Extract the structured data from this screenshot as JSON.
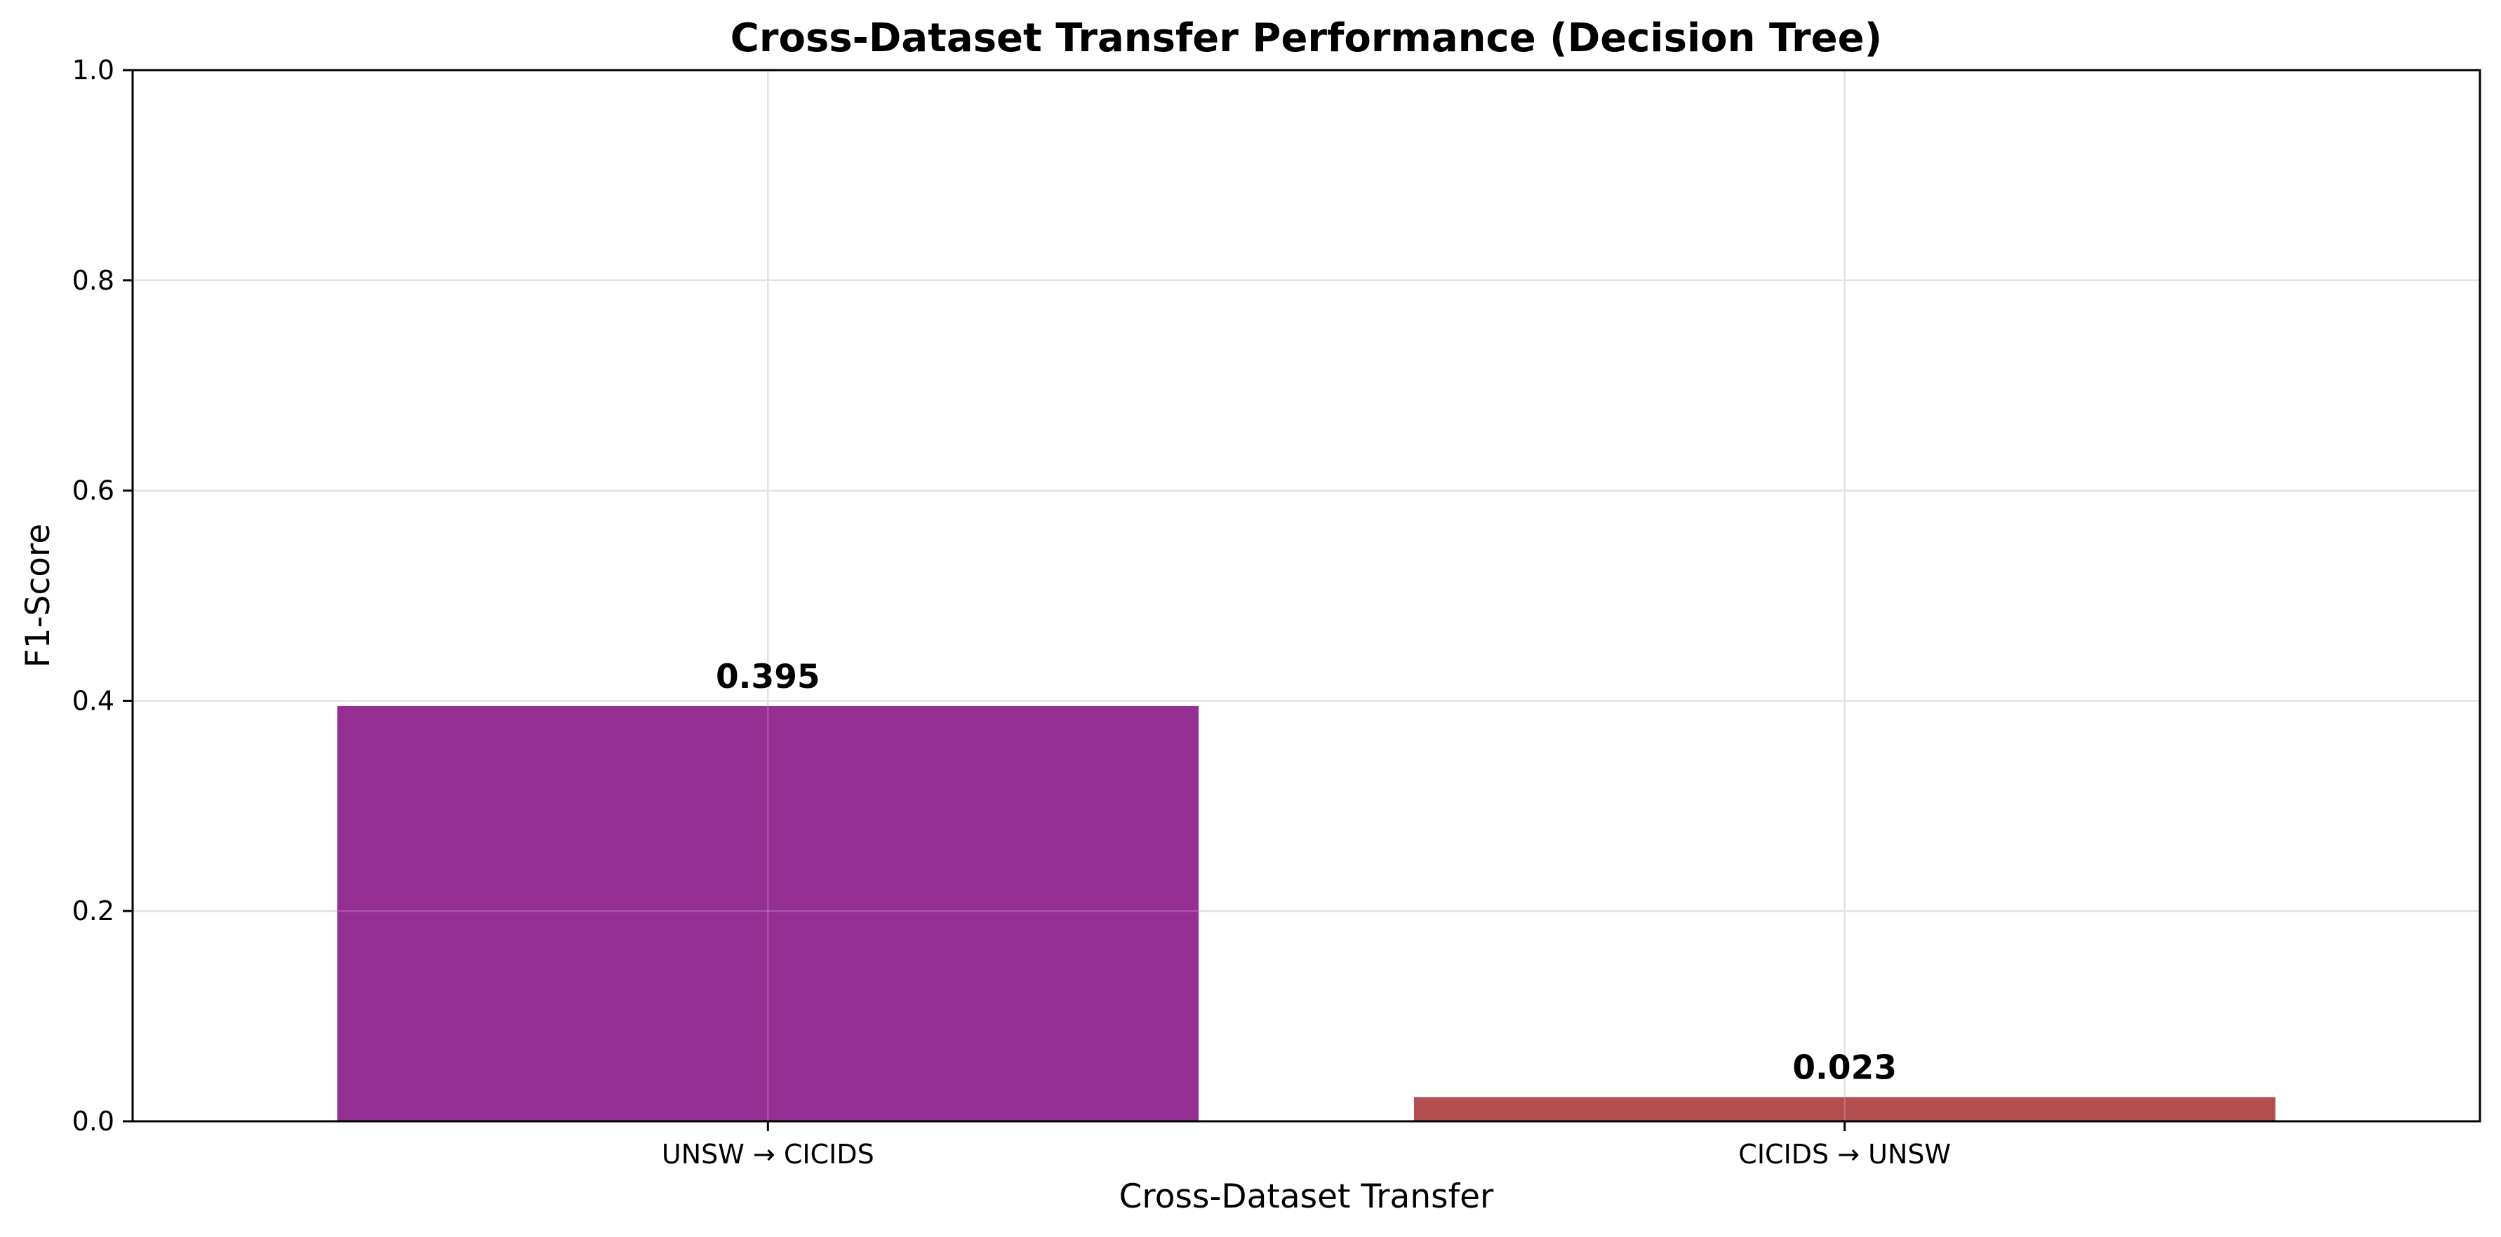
{
  "chart_data": {
    "type": "bar",
    "title": "Cross-Dataset Transfer Performance (Decision Tree)",
    "xlabel": "Cross-Dataset Transfer",
    "ylabel": "F1-Score",
    "categories": [
      "UNSW → CICIDS",
      "CICIDS → UNSW"
    ],
    "values": [
      0.395,
      0.023
    ],
    "value_labels": [
      "0.395",
      "0.023"
    ],
    "colors": [
      "#962f94",
      "#b24e50"
    ],
    "ylim": [
      0,
      1.0
    ],
    "yticks": [
      0.0,
      0.2,
      0.4,
      0.6,
      0.8,
      1.0
    ],
    "ytick_labels": [
      "0.0",
      "0.2",
      "0.4",
      "0.6",
      "0.8",
      "1.0"
    ],
    "grid": true,
    "legend": null
  }
}
